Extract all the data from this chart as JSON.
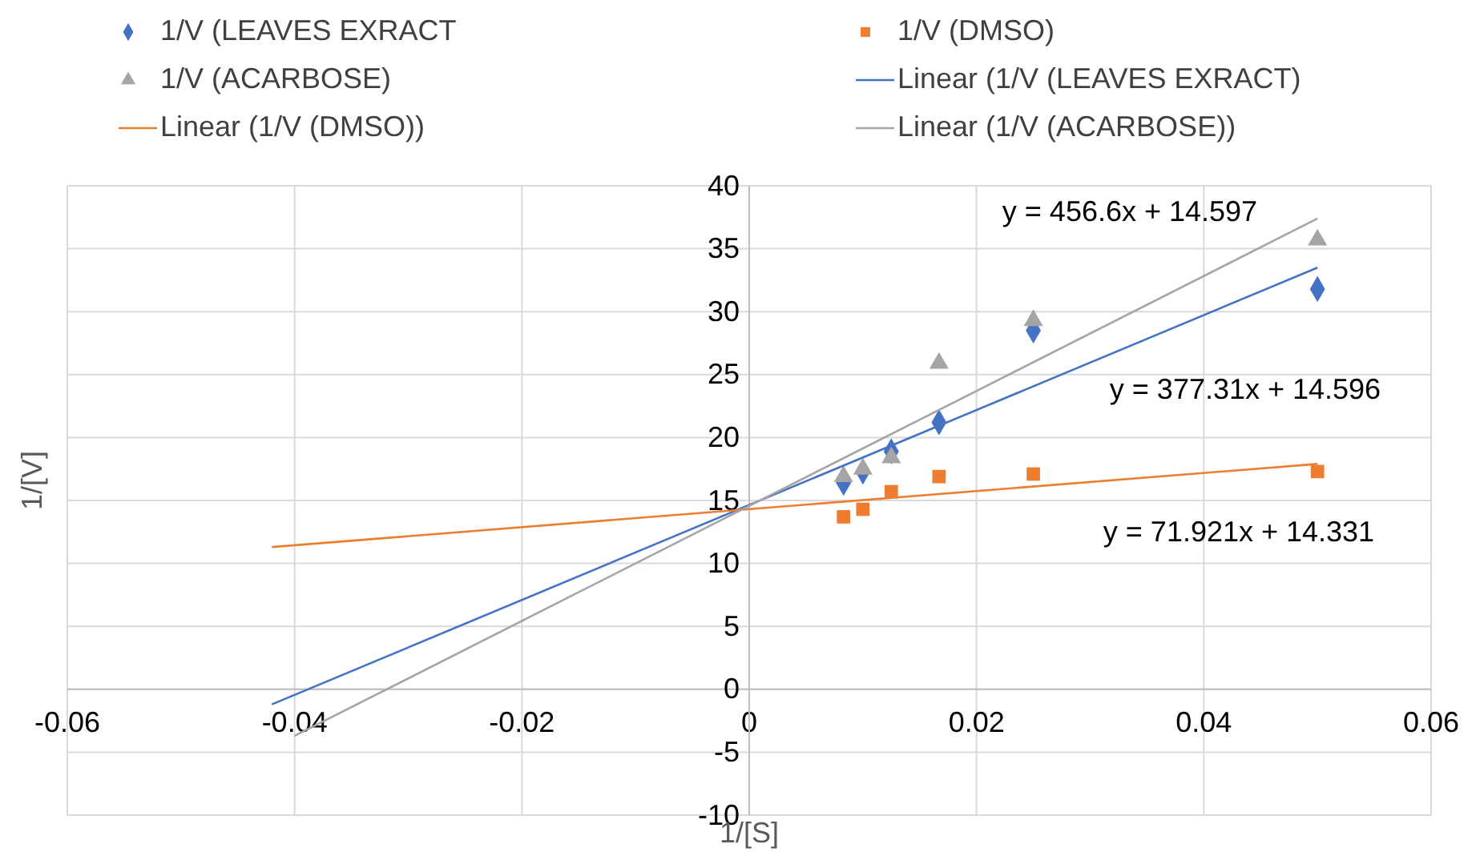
{
  "chart_data": {
    "type": "scatter",
    "xlabel": "1/[S]",
    "ylabel": "1/[V]",
    "xlim": [
      -0.06,
      0.06
    ],
    "xticks": [
      -0.06,
      -0.04,
      -0.02,
      0,
      0.02,
      0.04,
      0.06
    ],
    "ylim": [
      -10,
      40
    ],
    "yticks": [
      -10,
      -5,
      0,
      5,
      10,
      15,
      20,
      25,
      30,
      35,
      40
    ],
    "grid": true,
    "legend": "top",
    "series": [
      {
        "name": "1/V (LEAVES EXRACT",
        "marker": "diamond",
        "color": "#4472c4",
        "x": [
          0.05,
          0.025,
          0.0167,
          0.0125,
          0.01,
          0.0083
        ],
        "values": [
          31.8,
          28.5,
          21.2,
          18.9,
          17.3,
          16.4
        ]
      },
      {
        "name": "1/V (DMSO)",
        "marker": "square",
        "color": "#ed7d31",
        "x": [
          0.05,
          0.025,
          0.0167,
          0.0125,
          0.01,
          0.0083
        ],
        "values": [
          17.3,
          17.1,
          16.9,
          15.7,
          14.3,
          13.7
        ]
      },
      {
        "name": "1/V (ACARBOSE)",
        "marker": "triangle",
        "color": "#a5a5a5",
        "x": [
          0.05,
          0.025,
          0.0167,
          0.0125,
          0.01,
          0.0083
        ],
        "values": [
          35.7,
          29.3,
          25.9,
          18.4,
          17.5,
          16.9
        ]
      },
      {
        "name": "Linear (1/V (LEAVES EXRACT)",
        "type": "line",
        "color": "#4472c4",
        "x": [
          -0.042,
          0.05
        ],
        "values": [
          -1.2,
          33.5
        ]
      },
      {
        "name": "Linear (1/V (DMSO))",
        "type": "line",
        "color": "#ed7d31",
        "x": [
          -0.042,
          0.05
        ],
        "values": [
          11.3,
          17.9
        ]
      },
      {
        "name": "Linear (1/V (ACARBOSE))",
        "type": "line",
        "color": "#a5a5a5",
        "x": [
          -0.04,
          0.05
        ],
        "values": [
          -3.7,
          37.4
        ]
      }
    ],
    "annotations": [
      "y = 456.6x + 14.597",
      "y = 377.31x + 14.596",
      "y = 71.921x + 14.331"
    ]
  }
}
